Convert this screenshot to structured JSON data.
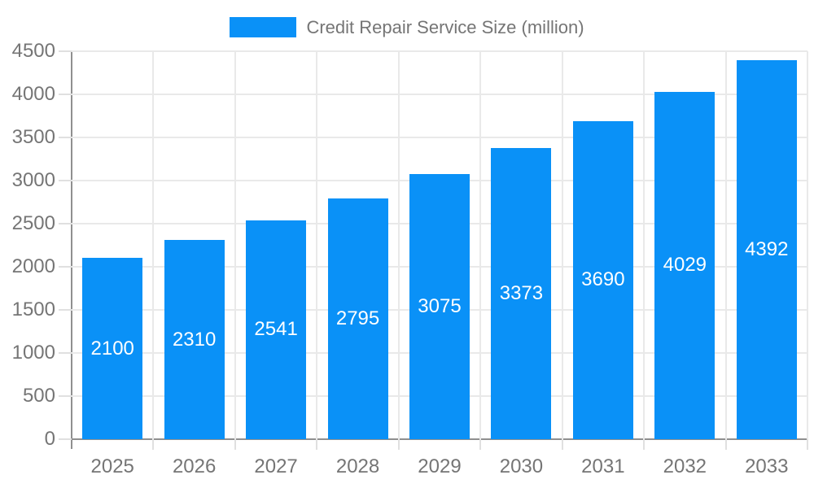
{
  "legend": {
    "label": "Credit Repair Service Size (million)",
    "swatch_color": "#0a91f7"
  },
  "colors": {
    "bar": "#0a91f7",
    "bar_label": "#ffffff",
    "axis_line": "#8f8f8f",
    "grid_line": "#e9e9e9",
    "tick_line": "#e0e0e0",
    "text": "#757575",
    "background": "#ffffff"
  },
  "chart_data": {
    "type": "bar",
    "title": "Credit Repair Service Size (million)",
    "series_name": "Credit Repair Service Size (million)",
    "categories": [
      "2025",
      "2026",
      "2027",
      "2028",
      "2029",
      "2030",
      "2031",
      "2032",
      "2033"
    ],
    "values": [
      2100,
      2310,
      2541,
      2795,
      3075,
      3373,
      3690,
      4029,
      4392
    ],
    "data_labels": [
      "2100",
      "2310",
      "2541",
      "2795",
      "3075",
      "3373",
      "3690",
      "4029",
      "4392"
    ],
    "xlabel": "",
    "ylabel": "",
    "ylim": [
      0,
      4500
    ],
    "ytick_step": 500,
    "yticks": [
      0,
      500,
      1000,
      1500,
      2000,
      2500,
      3000,
      3500,
      4000,
      4500
    ],
    "grid": true,
    "legend_position": "top",
    "data_label_position": "center-inside"
  }
}
